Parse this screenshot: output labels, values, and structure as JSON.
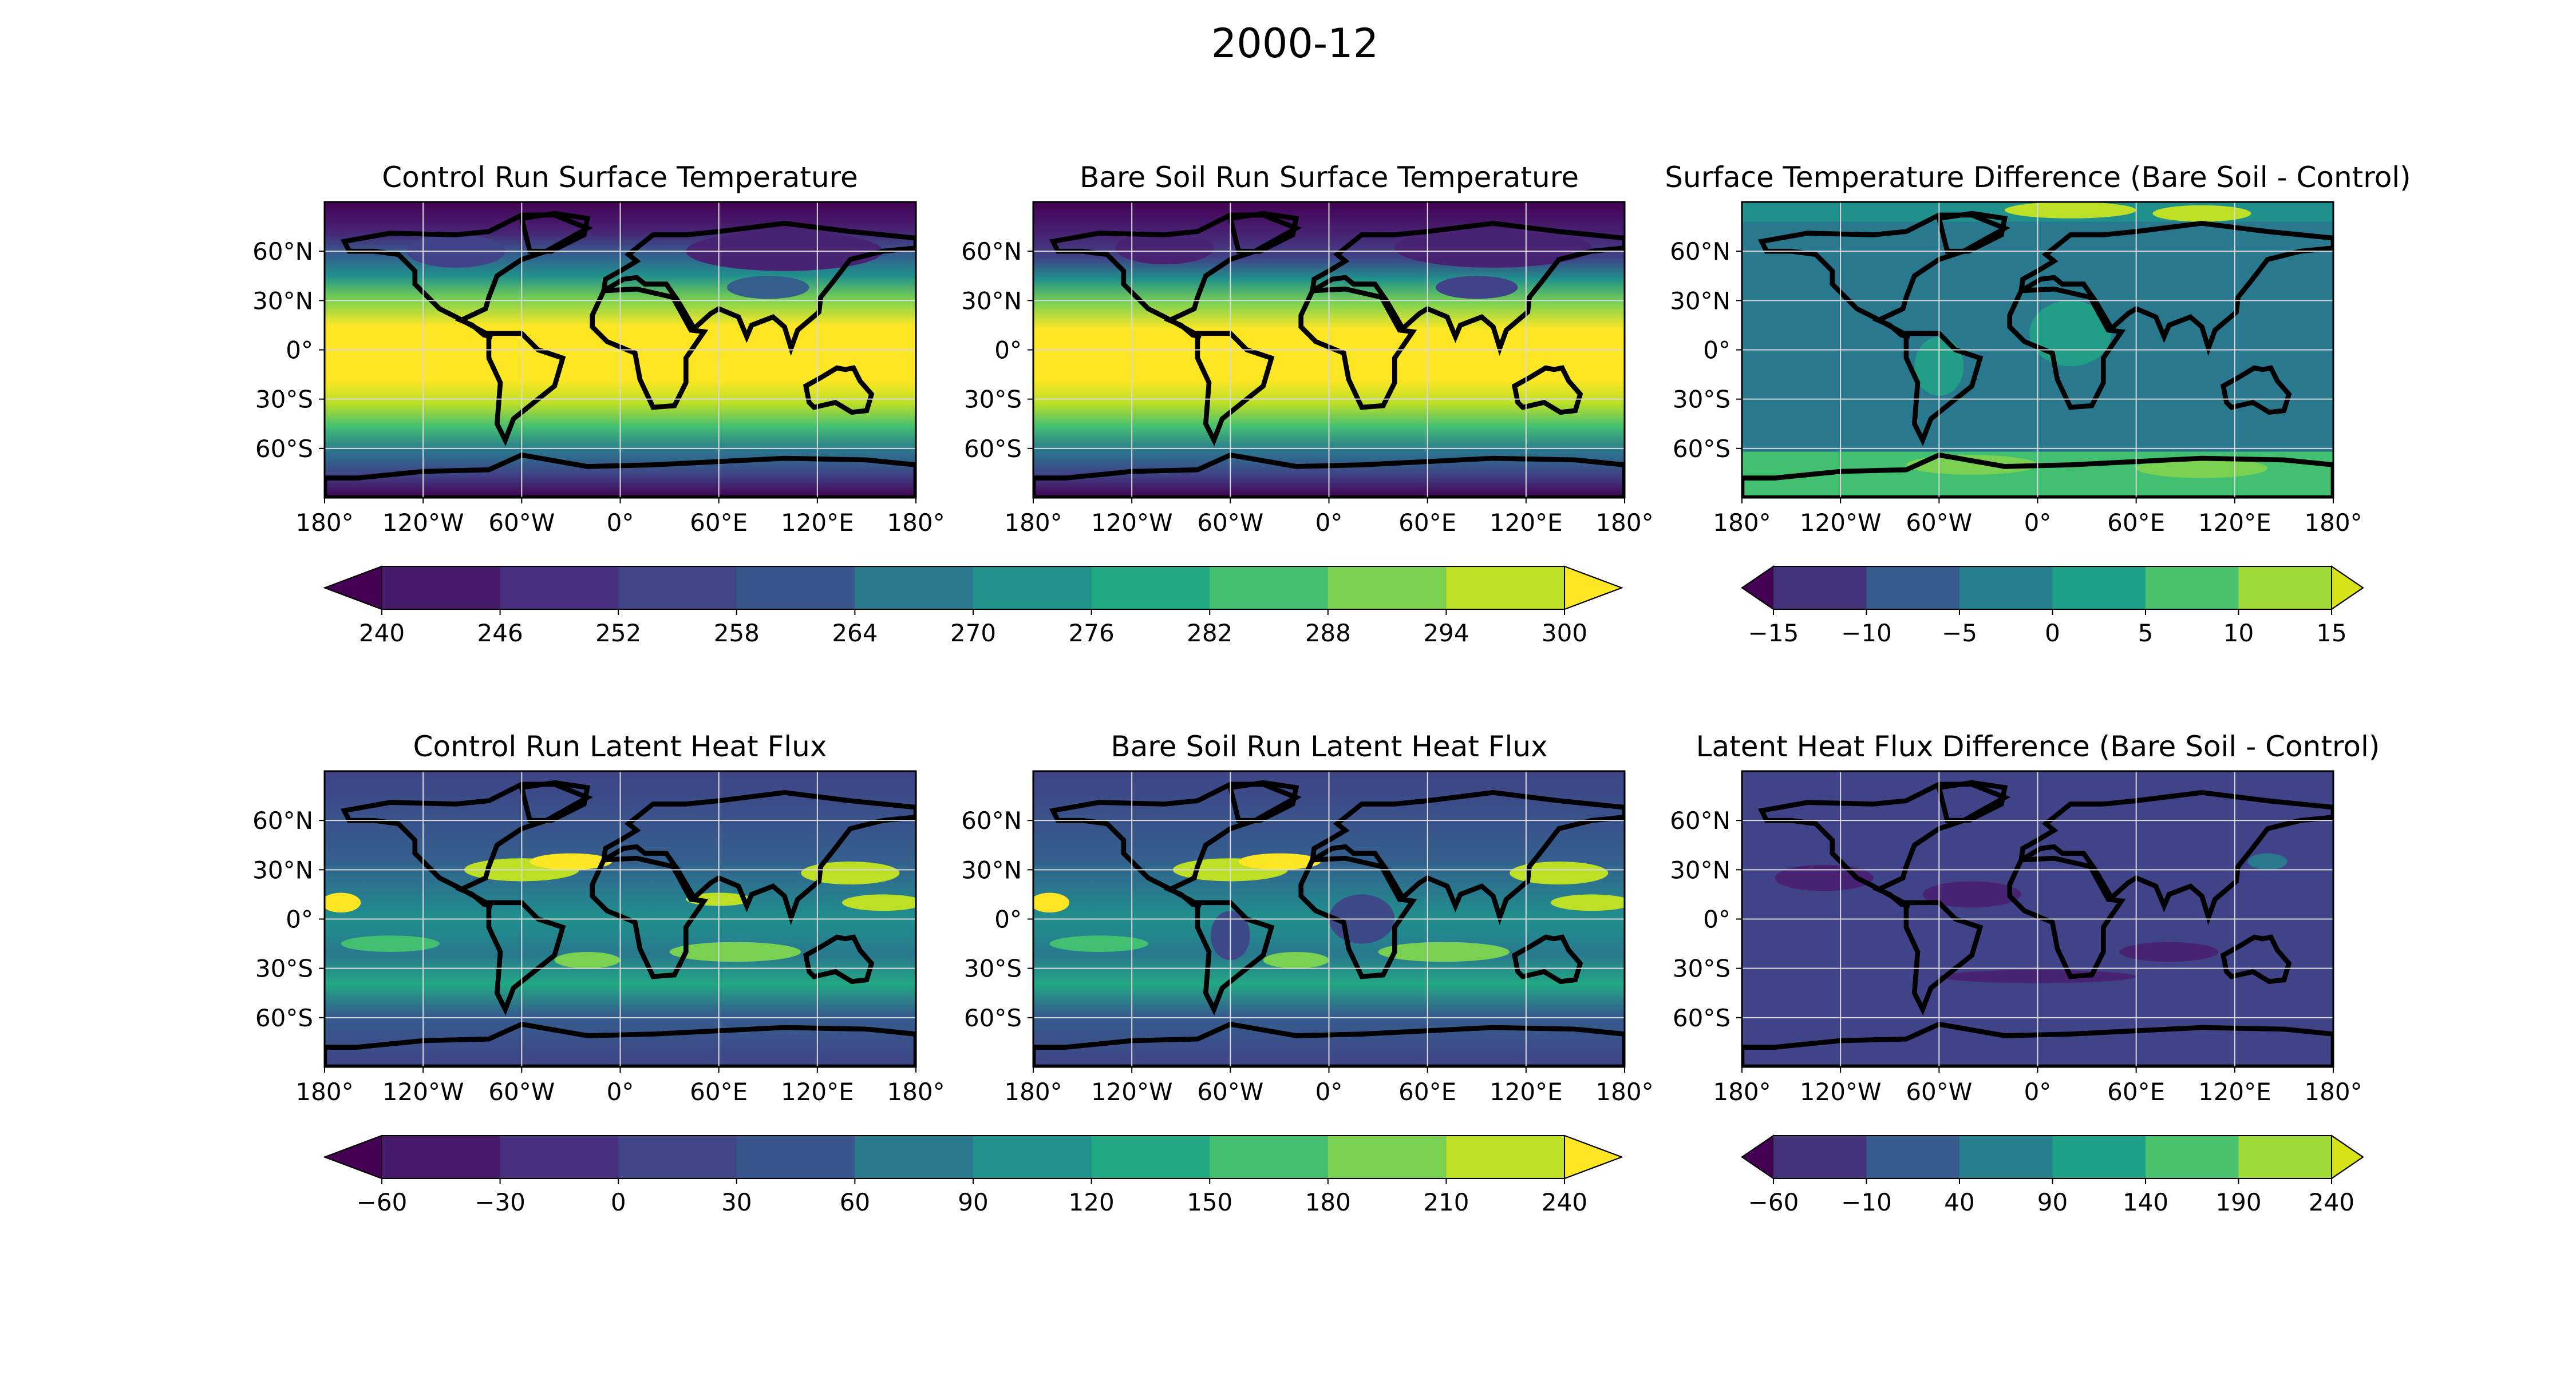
{
  "figure": {
    "suptitle": "2000-12"
  },
  "colors": {
    "viridis12": [
      "#440154",
      "#482374",
      "#404387",
      "#345f8d",
      "#29788e",
      "#20908d",
      "#22a884",
      "#43bf71",
      "#7ad151",
      "#bddf26",
      "#fde725"
    ],
    "land_outline": "#000000",
    "grid": "#d9d9d9"
  },
  "axis_ticks": {
    "lon": [
      "180°",
      "120°W",
      "60°W",
      "0°",
      "60°E",
      "120°E",
      "180°"
    ],
    "lat": [
      "60°N",
      "30°N",
      "0°",
      "30°S",
      "60°S"
    ]
  },
  "chart_data": [
    {
      "id": "ctrl_ts",
      "type": "heatmap",
      "title": "Control Run Surface Temperature",
      "field": "surface_temperature",
      "xlim": [
        -180,
        180
      ],
      "ylim": [
        -90,
        90
      ],
      "grid": true,
      "profile_lat": [
        -90,
        -60,
        -30,
        0,
        30,
        60,
        90
      ],
      "profile_value": [
        240,
        262,
        288,
        300,
        292,
        256,
        240
      ]
    },
    {
      "id": "bare_ts",
      "type": "heatmap",
      "title": "Bare Soil Run Surface Temperature",
      "field": "surface_temperature",
      "xlim": [
        -180,
        180
      ],
      "ylim": [
        -90,
        90
      ],
      "grid": true,
      "profile_lat": [
        -90,
        -60,
        -30,
        0,
        30,
        60,
        90
      ],
      "profile_value": [
        240,
        262,
        288,
        300,
        292,
        254,
        240
      ]
    },
    {
      "id": "diff_ts",
      "type": "heatmap",
      "title": "Surface Temperature Difference (Bare Soil - Control)",
      "field": "difference",
      "xlim": [
        -180,
        180
      ],
      "ylim": [
        -90,
        90
      ],
      "grid": true,
      "background_value": -1
    },
    {
      "id": "ctrl_lh",
      "type": "heatmap",
      "title": "Control Run Latent Heat Flux",
      "field": "latent_heat",
      "xlim": [
        -180,
        180
      ],
      "ylim": [
        -90,
        90
      ],
      "grid": true,
      "background_value": 20
    },
    {
      "id": "bare_lh",
      "type": "heatmap",
      "title": "Bare Soil Run Latent Heat Flux",
      "field": "latent_heat",
      "xlim": [
        -180,
        180
      ],
      "ylim": [
        -90,
        90
      ],
      "grid": true,
      "background_value": 20
    },
    {
      "id": "diff_lh",
      "type": "heatmap",
      "title": "Latent Heat Flux Difference (Bare Soil - Control)",
      "field": "difference",
      "xlim": [
        -180,
        180
      ],
      "ylim": [
        -90,
        90
      ],
      "grid": true,
      "background_value": 20
    }
  ],
  "colorbars": [
    {
      "id": "cb_ts",
      "extend": "both",
      "boundaries": [
        240,
        246,
        252,
        258,
        264,
        270,
        276,
        282,
        288,
        294,
        300
      ],
      "labels": [
        "240",
        "246",
        "252",
        "258",
        "264",
        "270",
        "276",
        "282",
        "288",
        "294",
        "300"
      ]
    },
    {
      "id": "cb_tsd",
      "extend": "both",
      "boundaries": [
        -15,
        -10,
        -5,
        0,
        5,
        10,
        15
      ],
      "labels": [
        "−15",
        "−10",
        "−5",
        "0",
        "5",
        "10",
        "15"
      ]
    },
    {
      "id": "cb_lh",
      "extend": "both",
      "boundaries": [
        -60,
        -30,
        0,
        30,
        60,
        90,
        120,
        150,
        180,
        210,
        240
      ],
      "labels": [
        "−60",
        "−30",
        "0",
        "30",
        "60",
        "90",
        "120",
        "150",
        "180",
        "210",
        "240"
      ]
    },
    {
      "id": "cb_lhd",
      "extend": "both",
      "boundaries": [
        -60,
        -10,
        40,
        90,
        140,
        190,
        240
      ],
      "labels": [
        "−60",
        "−10",
        "40",
        "90",
        "140",
        "190",
        "240"
      ]
    }
  ]
}
